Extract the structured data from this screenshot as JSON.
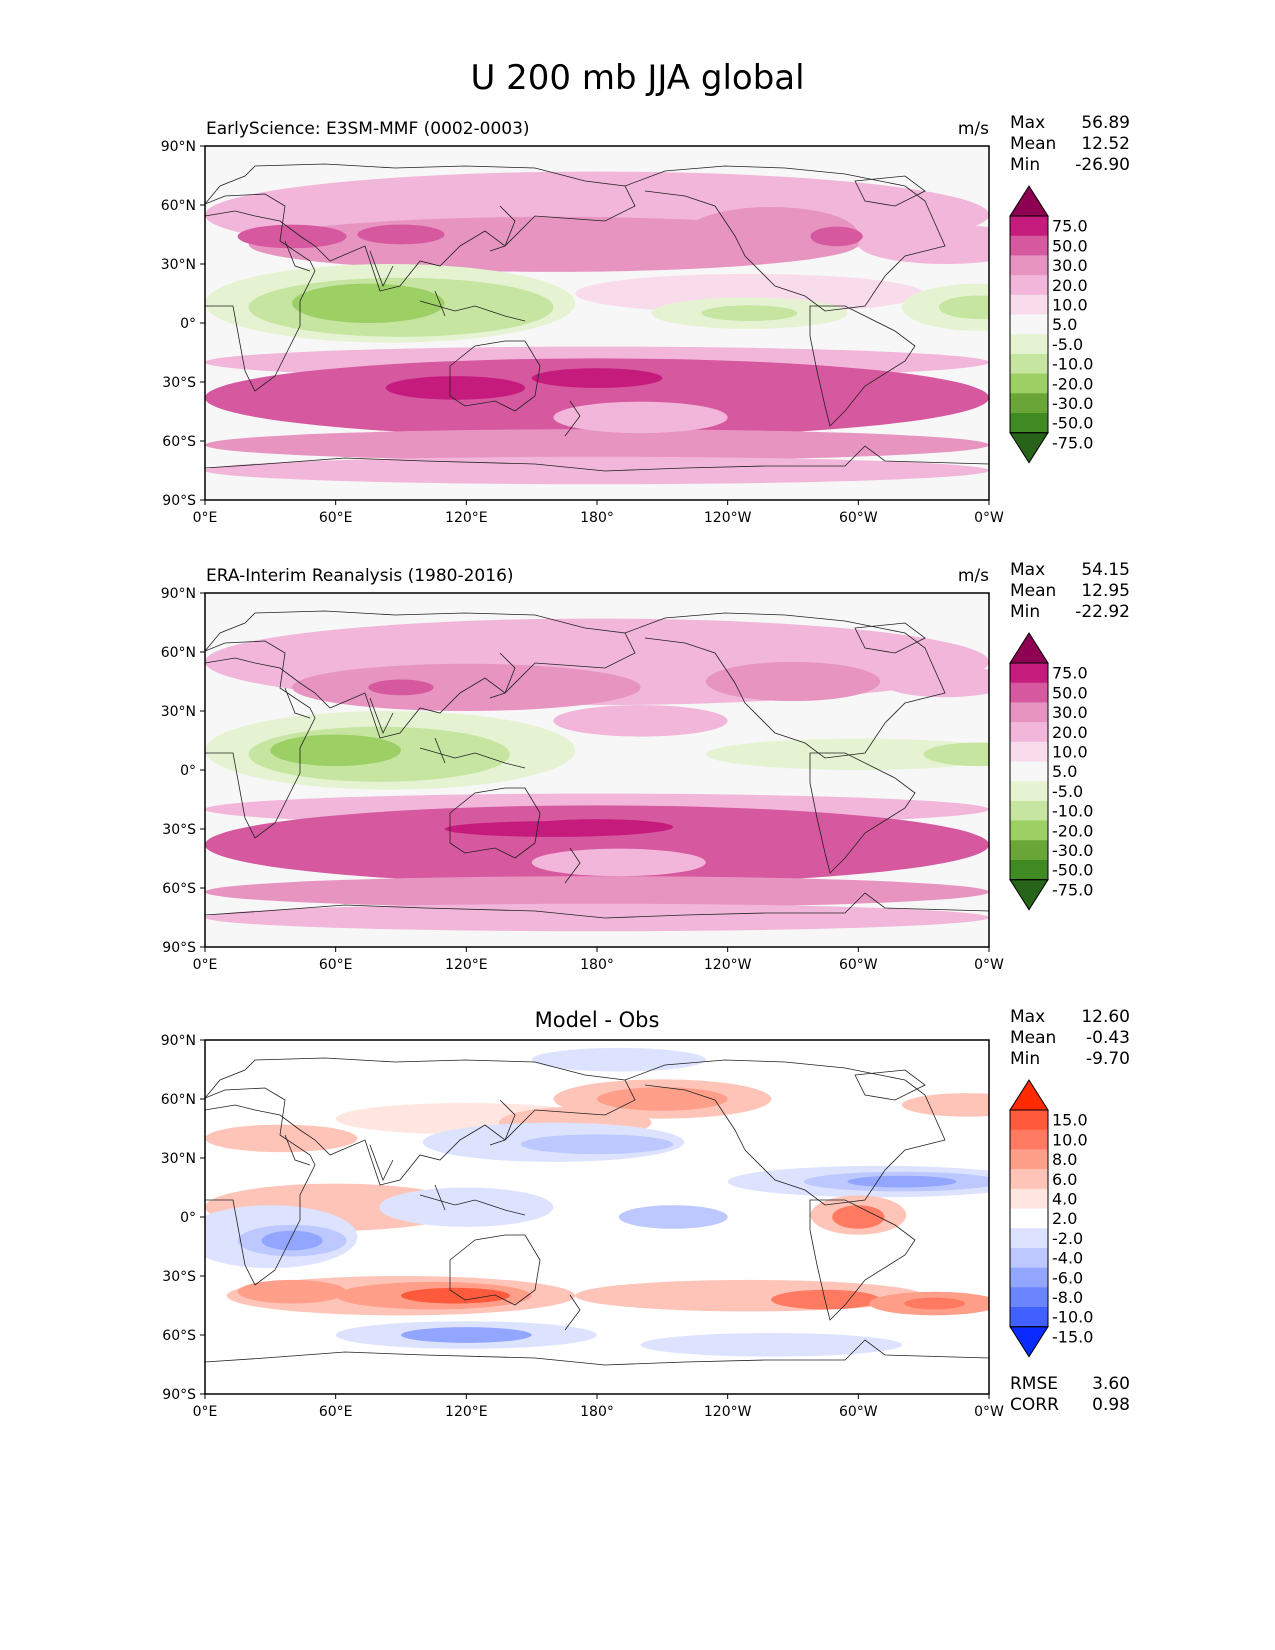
{
  "title": "U 200 mb JJA global",
  "axes": {
    "lat_ticks": [
      "90°N",
      "60°N",
      "30°N",
      "0°",
      "30°S",
      "60°S",
      "90°S"
    ],
    "lon_ticks": [
      "0°E",
      "60°E",
      "120°E",
      "180°",
      "120°W",
      "60°W",
      "0°W"
    ]
  },
  "panels": [
    {
      "id": "test",
      "title_left": "EarlyScience: E3SM-MMF (0002-0003)",
      "title_center": "",
      "units": "m/s",
      "stats": [
        {
          "label": "Max",
          "value": "56.89"
        },
        {
          "label": "Mean",
          "value": "12.52"
        },
        {
          "label": "Min",
          "value": "-26.90"
        }
      ],
      "footer_stats": []
    },
    {
      "id": "ref",
      "title_left": "ERA-Interim Reanalysis (1980-2016)",
      "title_center": "",
      "units": "m/s",
      "stats": [
        {
          "label": "Max",
          "value": "54.15"
        },
        {
          "label": "Mean",
          "value": "12.95"
        },
        {
          "label": "Min",
          "value": "-22.92"
        }
      ],
      "footer_stats": []
    },
    {
      "id": "diff",
      "title_left": "",
      "title_center": "Model - Obs",
      "units": "",
      "stats": [
        {
          "label": "Max",
          "value": "12.60"
        },
        {
          "label": "Mean",
          "value": "-0.43"
        },
        {
          "label": "Min",
          "value": "-9.70"
        }
      ],
      "footer_stats": [
        {
          "label": "RMSE",
          "value": "3.60"
        },
        {
          "label": "CORR",
          "value": "0.98"
        }
      ]
    }
  ],
  "colorbars": {
    "field": {
      "labels": [
        "75.0",
        "50.0",
        "30.0",
        "20.0",
        "10.0",
        "5.0",
        "-5.0",
        "-10.0",
        "-20.0",
        "-30.0",
        "-50.0",
        "-75.0"
      ],
      "colors": [
        "#8e0152",
        "#c51b7d",
        "#d6589f",
        "#e794c1",
        "#f1b6da",
        "#f9dcec",
        "#f7f7f7",
        "#e6f3d3",
        "#c5e5a0",
        "#9ccf64",
        "#6aa537",
        "#3f8a23",
        "#276419"
      ]
    },
    "diff": {
      "labels": [
        "15.0",
        "10.0",
        "8.0",
        "6.0",
        "4.0",
        "2.0",
        "-2.0",
        "-4.0",
        "-6.0",
        "-8.0",
        "-10.0",
        "-15.0"
      ],
      "colors": [
        "#ff2a00",
        "#ff5a3c",
        "#ff7a60",
        "#ff9f8a",
        "#ffc4b8",
        "#ffe6e0",
        "#ffffff",
        "#dde3ff",
        "#bcc8ff",
        "#93a6ff",
        "#6b84ff",
        "#4060ff",
        "#0a2aff"
      ]
    }
  },
  "map_data": {
    "test": [
      {
        "lon": 180,
        "lat": 55,
        "rx": 180,
        "ry": 22,
        "level": 4
      },
      {
        "lon": 160,
        "lat": 40,
        "rx": 140,
        "ry": 14,
        "level": 3
      },
      {
        "lon": 90,
        "lat": 45,
        "rx": 20,
        "ry": 5,
        "level": 2
      },
      {
        "lon": 40,
        "lat": 44,
        "rx": 25,
        "ry": 6,
        "level": 2
      },
      {
        "lon": 260,
        "lat": 45,
        "rx": 40,
        "ry": 14,
        "level": 3
      },
      {
        "lon": 290,
        "lat": 44,
        "rx": 12,
        "ry": 5,
        "level": 2
      },
      {
        "lon": 340,
        "lat": 40,
        "rx": 40,
        "ry": 10,
        "level": 4
      },
      {
        "lon": 250,
        "lat": 15,
        "rx": 80,
        "ry": 10,
        "level": 5
      },
      {
        "lon": 180,
        "lat": -20,
        "rx": 180,
        "ry": 8,
        "level": 4
      },
      {
        "lon": 180,
        "lat": -38,
        "rx": 180,
        "ry": 20,
        "level": 2
      },
      {
        "lon": 180,
        "lat": -62,
        "rx": 180,
        "ry": 8,
        "level": 3
      },
      {
        "lon": 180,
        "lat": -75,
        "rx": 180,
        "ry": 7,
        "level": 4
      },
      {
        "lon": 115,
        "lat": -33,
        "rx": 32,
        "ry": 6,
        "level": 1
      },
      {
        "lon": 180,
        "lat": -28,
        "rx": 30,
        "ry": 5,
        "level": 1
      },
      {
        "lon": 200,
        "lat": -48,
        "rx": 40,
        "ry": 8,
        "level": 4
      },
      {
        "lon": 85,
        "lat": 10,
        "rx": 85,
        "ry": 20,
        "level": 7
      },
      {
        "lon": 90,
        "lat": 8,
        "rx": 70,
        "ry": 15,
        "level": 8
      },
      {
        "lon": 75,
        "lat": 10,
        "rx": 35,
        "ry": 10,
        "level": 9
      },
      {
        "lon": 250,
        "lat": 5,
        "rx": 45,
        "ry": 8,
        "level": 7
      },
      {
        "lon": 250,
        "lat": 5,
        "rx": 22,
        "ry": 4,
        "level": 8
      },
      {
        "lon": 355,
        "lat": 8,
        "rx": 35,
        "ry": 12,
        "level": 7
      },
      {
        "lon": 355,
        "lat": 8,
        "rx": 18,
        "ry": 6,
        "level": 8
      }
    ],
    "ref": [
      {
        "lon": 180,
        "lat": 55,
        "rx": 180,
        "ry": 22,
        "level": 4
      },
      {
        "lon": 120,
        "lat": 42,
        "rx": 80,
        "ry": 12,
        "level": 3
      },
      {
        "lon": 90,
        "lat": 42,
        "rx": 15,
        "ry": 4,
        "level": 2
      },
      {
        "lon": 270,
        "lat": 45,
        "rx": 40,
        "ry": 10,
        "level": 3
      },
      {
        "lon": 340,
        "lat": 45,
        "rx": 30,
        "ry": 8,
        "level": 4
      },
      {
        "lon": 200,
        "lat": 25,
        "rx": 40,
        "ry": 8,
        "level": 4
      },
      {
        "lon": 180,
        "lat": -20,
        "rx": 180,
        "ry": 8,
        "level": 4
      },
      {
        "lon": 180,
        "lat": -38,
        "rx": 180,
        "ry": 20,
        "level": 2
      },
      {
        "lon": 180,
        "lat": -62,
        "rx": 180,
        "ry": 8,
        "level": 3
      },
      {
        "lon": 180,
        "lat": -75,
        "rx": 180,
        "ry": 7,
        "level": 4
      },
      {
        "lon": 160,
        "lat": -30,
        "rx": 50,
        "ry": 4,
        "level": 1
      },
      {
        "lon": 180,
        "lat": -29,
        "rx": 35,
        "ry": 4,
        "level": 1
      },
      {
        "lon": 190,
        "lat": -47,
        "rx": 40,
        "ry": 7,
        "level": 4
      },
      {
        "lon": 85,
        "lat": 10,
        "rx": 85,
        "ry": 20,
        "level": 7
      },
      {
        "lon": 80,
        "lat": 8,
        "rx": 60,
        "ry": 14,
        "level": 8
      },
      {
        "lon": 60,
        "lat": 10,
        "rx": 30,
        "ry": 8,
        "level": 9
      },
      {
        "lon": 300,
        "lat": 8,
        "rx": 70,
        "ry": 8,
        "level": 7
      },
      {
        "lon": 355,
        "lat": 8,
        "rx": 25,
        "ry": 6,
        "level": 8
      }
    ],
    "diff": [
      {
        "lon": 210,
        "lat": 60,
        "rx": 50,
        "ry": 10,
        "level": 4
      },
      {
        "lon": 210,
        "lat": 60,
        "rx": 30,
        "ry": 6,
        "level": 3
      },
      {
        "lon": 120,
        "lat": 50,
        "rx": 60,
        "ry": 8,
        "level": 5
      },
      {
        "lon": 170,
        "lat": 48,
        "rx": 35,
        "ry": 8,
        "level": 4
      },
      {
        "lon": 35,
        "lat": 40,
        "rx": 35,
        "ry": 7,
        "level": 4
      },
      {
        "lon": 350,
        "lat": 57,
        "rx": 30,
        "ry": 6,
        "level": 4
      },
      {
        "lon": 60,
        "lat": 5,
        "rx": 60,
        "ry": 12,
        "level": 4
      },
      {
        "lon": 120,
        "lat": 5,
        "rx": 40,
        "ry": 10,
        "level": 7
      },
      {
        "lon": 30,
        "lat": -10,
        "rx": 40,
        "ry": 16,
        "level": 7
      },
      {
        "lon": 40,
        "lat": -12,
        "rx": 25,
        "ry": 8,
        "level": 8
      },
      {
        "lon": 40,
        "lat": -12,
        "rx": 14,
        "ry": 5,
        "level": 9
      },
      {
        "lon": 160,
        "lat": 38,
        "rx": 60,
        "ry": 10,
        "level": 7
      },
      {
        "lon": 180,
        "lat": 37,
        "rx": 35,
        "ry": 5,
        "level": 8
      },
      {
        "lon": 215,
        "lat": 0,
        "rx": 25,
        "ry": 6,
        "level": 8
      },
      {
        "lon": 310,
        "lat": 18,
        "rx": 70,
        "ry": 8,
        "level": 7
      },
      {
        "lon": 320,
        "lat": 18,
        "rx": 45,
        "ry": 5,
        "level": 8
      },
      {
        "lon": 320,
        "lat": 18,
        "rx": 25,
        "ry": 3,
        "level": 9
      },
      {
        "lon": 300,
        "lat": 1,
        "rx": 22,
        "ry": 10,
        "level": 4
      },
      {
        "lon": 300,
        "lat": 0,
        "rx": 12,
        "ry": 6,
        "level": 2
      },
      {
        "lon": 90,
        "lat": -40,
        "rx": 80,
        "ry": 10,
        "level": 4
      },
      {
        "lon": 105,
        "lat": -40,
        "rx": 45,
        "ry": 7,
        "level": 3
      },
      {
        "lon": 115,
        "lat": -40,
        "rx": 25,
        "ry": 4,
        "level": 1
      },
      {
        "lon": 40,
        "lat": -38,
        "rx": 25,
        "ry": 6,
        "level": 3
      },
      {
        "lon": 250,
        "lat": -40,
        "rx": 80,
        "ry": 8,
        "level": 4
      },
      {
        "lon": 285,
        "lat": -42,
        "rx": 25,
        "ry": 5,
        "level": 2
      },
      {
        "lon": 335,
        "lat": -44,
        "rx": 30,
        "ry": 6,
        "level": 3
      },
      {
        "lon": 335,
        "lat": -44,
        "rx": 14,
        "ry": 3,
        "level": 2
      },
      {
        "lon": 120,
        "lat": -60,
        "rx": 60,
        "ry": 7,
        "level": 7
      },
      {
        "lon": 120,
        "lat": -60,
        "rx": 30,
        "ry": 4,
        "level": 9
      },
      {
        "lon": 260,
        "lat": -65,
        "rx": 60,
        "ry": 6,
        "level": 7
      },
      {
        "lon": 190,
        "lat": 80,
        "rx": 40,
        "ry": 6,
        "level": 7
      }
    ]
  }
}
